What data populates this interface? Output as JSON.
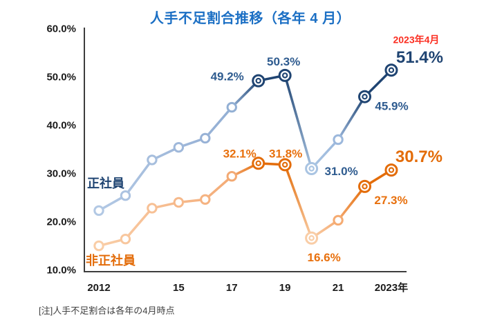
{
  "chart_data": {
    "type": "line",
    "title": "人手不足割合推移（各年 4 月）",
    "title_color": "#1b6fc4",
    "note": "[注]人手不足割合は各年の4月時点",
    "x": [
      2012,
      2013,
      2014,
      2015,
      2016,
      2017,
      2018,
      2019,
      2020,
      2021,
      2022,
      2023
    ],
    "x_tick_labels": [
      {
        "label": "2012",
        "year": 2012
      },
      {
        "label": "15",
        "year": 2015
      },
      {
        "label": "17",
        "year": 2017
      },
      {
        "label": "19",
        "year": 2019
      },
      {
        "label": "21",
        "year": 2021
      },
      {
        "label": "2023年",
        "year": 2023
      }
    ],
    "y_ticks": [
      {
        "label": "60.0%",
        "value": 60
      },
      {
        "label": "50.0%",
        "value": 50
      },
      {
        "label": "40.0%",
        "value": 40
      },
      {
        "label": "30.0%",
        "value": 30
      },
      {
        "label": "20.0%",
        "value": 20
      },
      {
        "label": "10.0%",
        "value": 10
      }
    ],
    "ylim": [
      10,
      60
    ],
    "grid": false,
    "series": [
      {
        "name": "正社員",
        "name_color": "#1f4472",
        "name_pos": {
          "x": 126,
          "y": 272
        },
        "values": [
          22.3,
          25.4,
          32.8,
          35.4,
          37.3,
          43.7,
          49.2,
          50.3,
          31.0,
          37.0,
          45.9,
          51.4
        ],
        "point_colors": [
          "#b2c8e4",
          "#acc3e1",
          "#a6bedd",
          "#9fb8da",
          "#98b2d6",
          "#93b0d4",
          "#1f4472",
          "#1f4472",
          "#a9c4e2",
          "#9cb8dc",
          "#1f4472",
          "#1f4472"
        ],
        "ring_years": [
          2018,
          2019,
          2020,
          2022,
          2023
        ],
        "annotations": [
          {
            "year": 2018,
            "text": "49.2%",
            "dx": -45,
            "dy": -6,
            "size": "normal",
            "color": "#2e5b8f"
          },
          {
            "year": 2019,
            "text": "50.3%",
            "dx": -2,
            "dy": -20,
            "size": "normal",
            "color": "#2e5b8f"
          },
          {
            "year": 2020,
            "text": "31.0%",
            "dx": 43,
            "dy": 4,
            "size": "normal",
            "color": "#2e5b8f"
          },
          {
            "year": 2022,
            "text": "45.9%",
            "dx": 39,
            "dy": 14,
            "size": "normal",
            "color": "#2e5b8f"
          },
          {
            "year": 2023,
            "text": "51.4%",
            "dx": 41,
            "dy": -18,
            "size": "big",
            "color": "#1f4472"
          },
          {
            "year": 2023,
            "text": "2023年4月",
            "dx": 36,
            "dy": -44,
            "size": "small",
            "color": "#fb2e21"
          }
        ]
      },
      {
        "name": "非正社員",
        "name_color": "#e36c09",
        "name_pos": {
          "x": 124,
          "y": 384
        },
        "values": [
          15.0,
          16.4,
          22.8,
          24.0,
          24.6,
          29.4,
          32.1,
          31.8,
          16.6,
          20.3,
          27.3,
          30.7
        ],
        "point_colors": [
          "#f9cda6",
          "#f8c79e",
          "#f7c095",
          "#f6b98b",
          "#f5b382",
          "#f3aa74",
          "#e36c09",
          "#e36c09",
          "#f9cda6",
          "#f5ab72",
          "#e36c09",
          "#e36c09"
        ],
        "ring_years": [
          2018,
          2019,
          2020,
          2022,
          2023
        ],
        "annotations": [
          {
            "year": 2018,
            "text": "32.1%",
            "dx": -27,
            "dy": -14,
            "size": "normal",
            "color": "#e8700d"
          },
          {
            "year": 2019,
            "text": "31.8%",
            "dx": 1,
            "dy": -16,
            "size": "normal",
            "color": "#e8700d"
          },
          {
            "year": 2020,
            "text": "16.6%",
            "dx": 18,
            "dy": 28,
            "size": "normal",
            "color": "#e8700d"
          },
          {
            "year": 2022,
            "text": "27.3%",
            "dx": 38,
            "dy": 20,
            "size": "normal",
            "color": "#e8700d"
          },
          {
            "year": 2023,
            "text": "30.7%",
            "dx": 40,
            "dy": -19,
            "size": "big",
            "color": "#e36c09"
          }
        ]
      }
    ]
  }
}
